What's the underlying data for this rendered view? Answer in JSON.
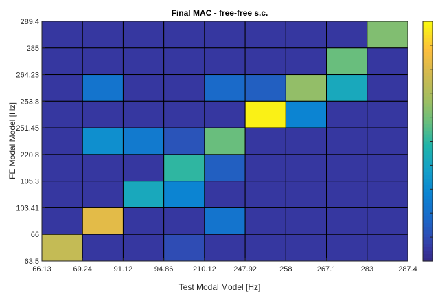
{
  "chart_data": {
    "type": "heatmap",
    "title": "Final MAC - free-free s.c.",
    "xlabel": "Test Modal Model [Hz]",
    "ylabel": "FE Modal Model [Hz]",
    "x_ticks": [
      "66.13",
      "69.24",
      "91.12",
      "94.86",
      "210.12",
      "247.92",
      "258",
      "267.1",
      "283",
      "287.4"
    ],
    "y_ticks": [
      "289.4",
      "285",
      "264.23",
      "253.8",
      "251.45",
      "220.8",
      "105.3",
      "103.41",
      "66",
      "63.5"
    ],
    "values": [
      [
        0.05,
        0.05,
        0.05,
        0.05,
        0.05,
        0.05,
        0.05,
        0.05,
        0.62
      ],
      [
        0.05,
        0.05,
        0.05,
        0.05,
        0.05,
        0.05,
        0.05,
        0.58,
        0.05
      ],
      [
        0.05,
        0.22,
        0.05,
        0.05,
        0.18,
        0.15,
        0.65,
        0.42,
        0.05
      ],
      [
        0.05,
        0.05,
        0.05,
        0.05,
        0.05,
        0.98,
        0.28,
        0.05,
        0.05
      ],
      [
        0.05,
        0.32,
        0.24,
        0.12,
        0.58,
        0.05,
        0.05,
        0.05,
        0.05
      ],
      [
        0.05,
        0.05,
        0.05,
        0.5,
        0.15,
        0.05,
        0.05,
        0.05,
        0.05
      ],
      [
        0.05,
        0.05,
        0.42,
        0.28,
        0.05,
        0.05,
        0.05,
        0.05,
        0.05
      ],
      [
        0.05,
        0.82,
        0.05,
        0.05,
        0.22,
        0.05,
        0.05,
        0.05,
        0.05
      ],
      [
        0.75,
        0.05,
        0.05,
        0.1,
        0.05,
        0.05,
        0.05,
        0.05,
        0.05
      ]
    ],
    "clim": [
      0,
      1
    ],
    "colormap": "parula",
    "grid": true
  }
}
